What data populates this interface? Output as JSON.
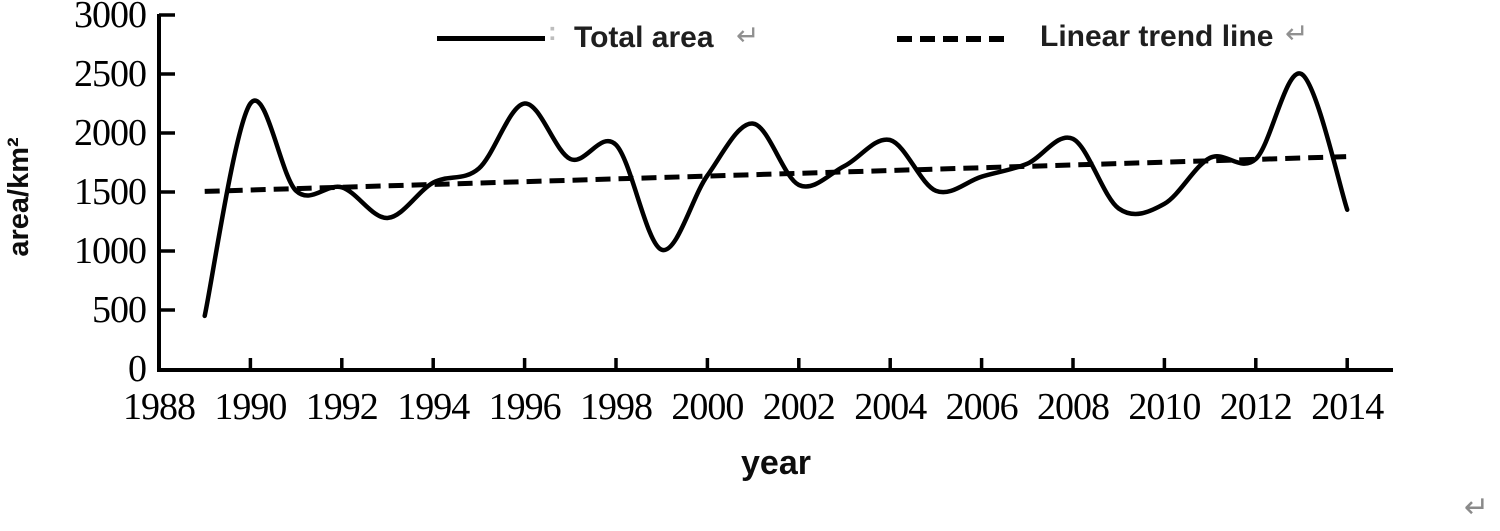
{
  "chart_data": {
    "type": "line",
    "title": "",
    "xlabel": "year",
    "ylabel": "area/km²",
    "xlim": [
      1988,
      2015
    ],
    "ylim": [
      0,
      3000
    ],
    "x_ticks": [
      1988,
      1990,
      1992,
      1994,
      1996,
      1998,
      2000,
      2002,
      2004,
      2006,
      2008,
      2010,
      2012,
      2014
    ],
    "y_ticks": [
      0,
      500,
      1000,
      1500,
      2000,
      2500,
      3000
    ],
    "grid": false,
    "legend_position": "top-center",
    "series": [
      {
        "name": "Total area",
        "style": "solid",
        "smooth": true,
        "x": [
          1989,
          1990,
          1991,
          1992,
          1993,
          1994,
          1995,
          1996,
          1997,
          1998,
          1999,
          2000,
          2001,
          2002,
          2003,
          2004,
          2005,
          2006,
          2007,
          2008,
          2009,
          2010,
          2011,
          2012,
          2013,
          2014
        ],
        "values": [
          450,
          2250,
          1510,
          1540,
          1280,
          1580,
          1700,
          2250,
          1780,
          1900,
          1010,
          1640,
          2080,
          1560,
          1720,
          1940,
          1510,
          1630,
          1740,
          1950,
          1360,
          1400,
          1790,
          1780,
          2500,
          1350
        ]
      },
      {
        "name": "Linear trend line",
        "style": "dashed",
        "smooth": false,
        "x": [
          1989,
          2014
        ],
        "values": [
          1505,
          1800
        ]
      }
    ]
  },
  "marks": {
    "colon": ":",
    "return_symbol": "↵"
  },
  "colors": {
    "line": "#000000",
    "axis": "#000000",
    "legend_text": "#1f1f1f",
    "return_mark": "#909090",
    "colon_artifact": "#bdbdbd",
    "background": "#ffffff"
  }
}
